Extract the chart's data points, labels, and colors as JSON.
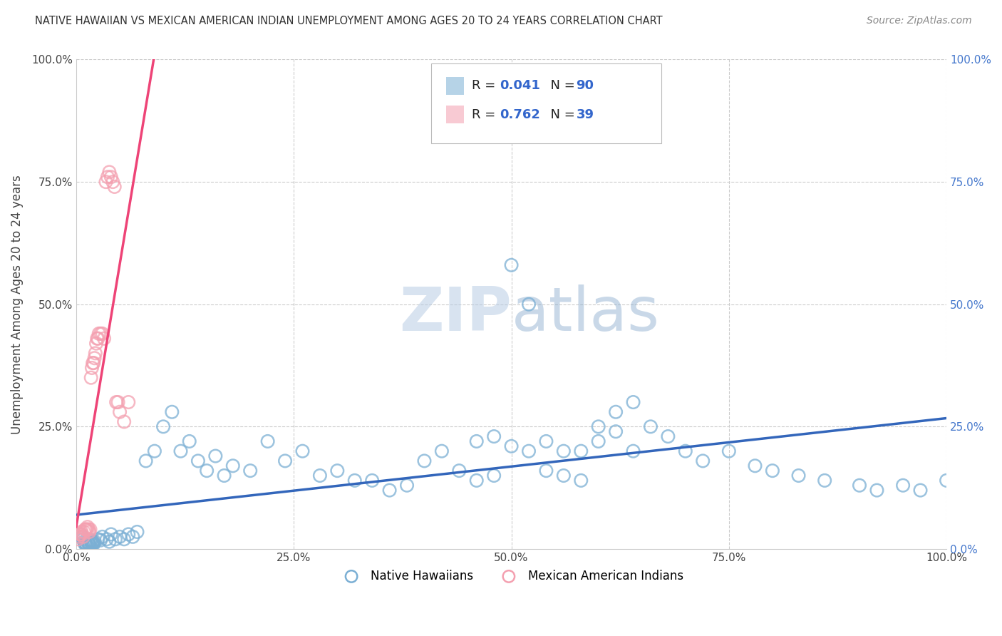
{
  "title": "NATIVE HAWAIIAN VS MEXICAN AMERICAN INDIAN UNEMPLOYMENT AMONG AGES 20 TO 24 YEARS CORRELATION CHART",
  "source": "Source: ZipAtlas.com",
  "ylabel": "Unemployment Among Ages 20 to 24 years",
  "xlim": [
    0.0,
    1.0
  ],
  "ylim": [
    0.0,
    1.0
  ],
  "xtick_labels": [
    "0.0%",
    "25.0%",
    "50.0%",
    "75.0%",
    "100.0%"
  ],
  "xtick_vals": [
    0.0,
    0.25,
    0.5,
    0.75,
    1.0
  ],
  "ytick_labels": [
    "0.0%",
    "25.0%",
    "50.0%",
    "75.0%",
    "100.0%"
  ],
  "ytick_vals": [
    0.0,
    0.25,
    0.5,
    0.75,
    1.0
  ],
  "right_ytick_labels": [
    "0.0%",
    "25.0%",
    "50.0%",
    "75.0%",
    "100.0%"
  ],
  "legend_r1": "R = 0.041",
  "legend_n1": "N = 90",
  "legend_r2": "R = 0.762",
  "legend_n2": "N = 39",
  "blue_color": "#7BAFD4",
  "pink_color": "#F4A0B0",
  "trend_blue": "#3366BB",
  "trend_pink": "#EE4477",
  "watermark": "ZIPatlas",
  "watermark_color": "#C8D8EC",
  "grid_color": "#CCCCCC",
  "background_color": "#FFFFFF",
  "nh_x": [
    0.005,
    0.007,
    0.008,
    0.009,
    0.01,
    0.01,
    0.011,
    0.012,
    0.013,
    0.014,
    0.015,
    0.015,
    0.016,
    0.017,
    0.018,
    0.018,
    0.019,
    0.02,
    0.02,
    0.021,
    0.025,
    0.028,
    0.03,
    0.035,
    0.038,
    0.04,
    0.045,
    0.05,
    0.055,
    0.06,
    0.065,
    0.07,
    0.08,
    0.09,
    0.1,
    0.11,
    0.12,
    0.13,
    0.14,
    0.15,
    0.16,
    0.17,
    0.18,
    0.2,
    0.22,
    0.24,
    0.26,
    0.28,
    0.3,
    0.32,
    0.34,
    0.36,
    0.38,
    0.4,
    0.42,
    0.44,
    0.46,
    0.48,
    0.5,
    0.52,
    0.54,
    0.56,
    0.58,
    0.6,
    0.62,
    0.64,
    0.66,
    0.68,
    0.7,
    0.72,
    0.75,
    0.78,
    0.8,
    0.83,
    0.86,
    0.9,
    0.92,
    0.95,
    0.97,
    1.0,
    0.46,
    0.48,
    0.5,
    0.52,
    0.54,
    0.56,
    0.6,
    0.62,
    0.58,
    0.64
  ],
  "nh_y": [
    0.03,
    0.025,
    0.02,
    0.015,
    0.01,
    0.012,
    0.01,
    0.008,
    0.015,
    0.012,
    0.01,
    0.008,
    0.015,
    0.018,
    0.012,
    0.01,
    0.015,
    0.012,
    0.01,
    0.015,
    0.02,
    0.018,
    0.025,
    0.02,
    0.015,
    0.03,
    0.02,
    0.025,
    0.02,
    0.03,
    0.025,
    0.035,
    0.18,
    0.2,
    0.25,
    0.28,
    0.2,
    0.22,
    0.18,
    0.16,
    0.19,
    0.15,
    0.17,
    0.16,
    0.22,
    0.18,
    0.2,
    0.15,
    0.16,
    0.14,
    0.14,
    0.12,
    0.13,
    0.18,
    0.2,
    0.16,
    0.14,
    0.15,
    0.58,
    0.5,
    0.16,
    0.15,
    0.14,
    0.25,
    0.28,
    0.3,
    0.25,
    0.23,
    0.2,
    0.18,
    0.2,
    0.17,
    0.16,
    0.15,
    0.14,
    0.13,
    0.12,
    0.13,
    0.12,
    0.14,
    0.22,
    0.23,
    0.21,
    0.2,
    0.22,
    0.2,
    0.22,
    0.24,
    0.2,
    0.2
  ],
  "mai_x": [
    0.002,
    0.003,
    0.004,
    0.005,
    0.006,
    0.007,
    0.008,
    0.009,
    0.01,
    0.011,
    0.012,
    0.013,
    0.014,
    0.015,
    0.016,
    0.017,
    0.018,
    0.019,
    0.02,
    0.021,
    0.022,
    0.023,
    0.024,
    0.025,
    0.026,
    0.028,
    0.03,
    0.032,
    0.034,
    0.036,
    0.038,
    0.04,
    0.042,
    0.044,
    0.046,
    0.048,
    0.05,
    0.055,
    0.06
  ],
  "mai_y": [
    0.02,
    0.025,
    0.03,
    0.03,
    0.035,
    0.03,
    0.025,
    0.035,
    0.04,
    0.04,
    0.04,
    0.045,
    0.04,
    0.035,
    0.04,
    0.35,
    0.37,
    0.38,
    0.38,
    0.39,
    0.4,
    0.42,
    0.43,
    0.43,
    0.44,
    0.44,
    0.44,
    0.43,
    0.75,
    0.76,
    0.77,
    0.76,
    0.75,
    0.74,
    0.3,
    0.3,
    0.28,
    0.26,
    0.3
  ]
}
